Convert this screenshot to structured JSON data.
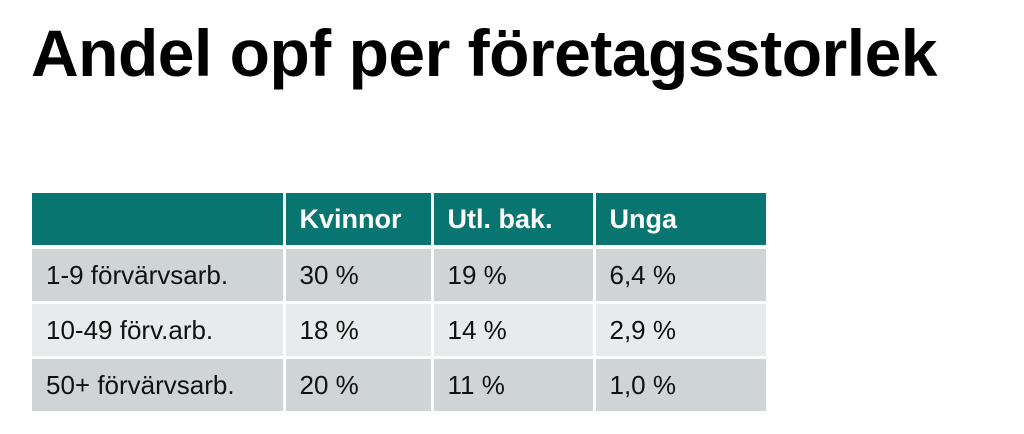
{
  "title": "Andel opf per företagsstorlek",
  "table": {
    "headers": [
      "",
      "Kvinnor",
      "Utl. bak.",
      "Unga"
    ],
    "rows": [
      [
        "1-9 förvärvsarb.",
        "30 %",
        "19 %",
        "6,4 %"
      ],
      [
        "10-49 förv.arb.",
        "18 %",
        "14 %",
        "2,9 %"
      ],
      [
        "50+ förvärvsarb.",
        "20 %",
        "11 %",
        "1,0 %"
      ]
    ]
  },
  "colors": {
    "header_bg": "#087571",
    "header_text": "#ffffff",
    "row_odd_bg": "#cfd5d5",
    "row_even_bg": "#e8ebeb"
  }
}
